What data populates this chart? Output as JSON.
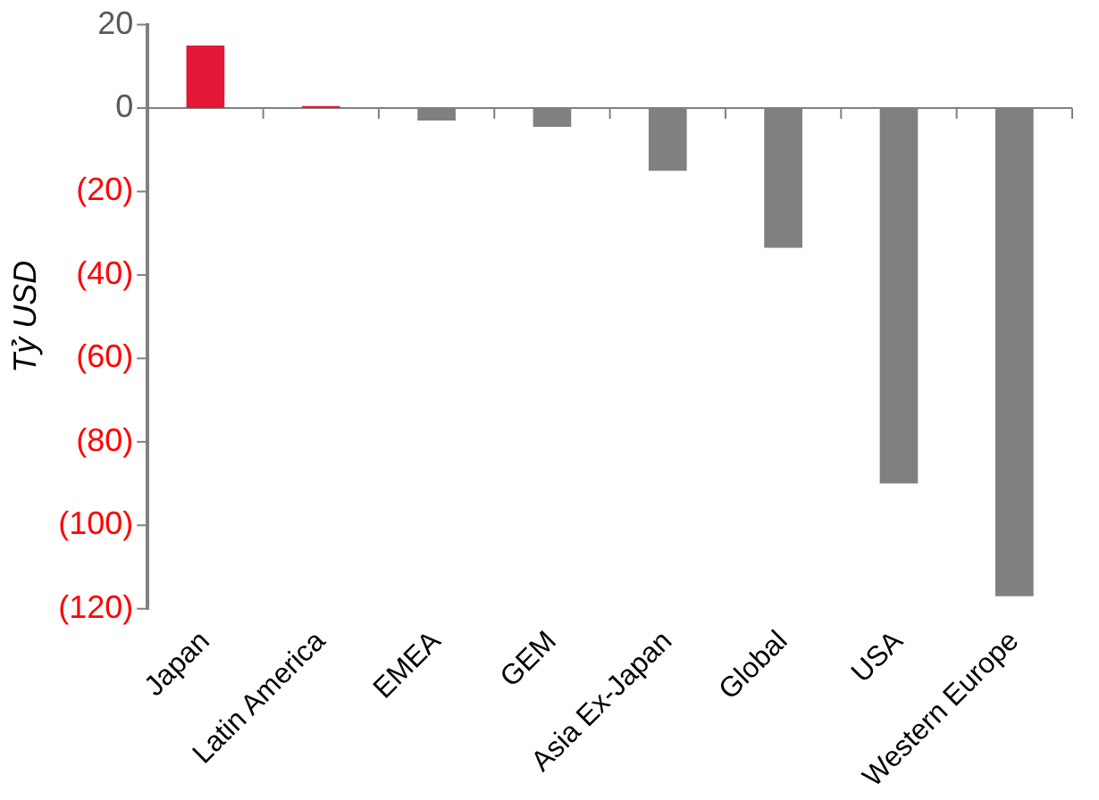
{
  "chart_data": {
    "type": "bar",
    "ylabel": "Tỷ USD",
    "categories": [
      "Japan",
      "Latin America",
      "EMEA",
      "GEM",
      "Asia Ex-Japan",
      "Global",
      "USA",
      "Western Europe"
    ],
    "values": [
      15,
      0.5,
      -3,
      -4.5,
      -15,
      -33.5,
      -90,
      -117
    ],
    "colors": [
      "#e31837",
      "#e31837",
      "#808080",
      "#808080",
      "#808080",
      "#808080",
      "#808080",
      "#808080"
    ],
    "ylim": [
      -120,
      20
    ],
    "yticks": [
      20,
      0,
      {
        "value": -20,
        "label": "(20)"
      },
      {
        "value": -40,
        "label": "(40)"
      },
      {
        "value": -60,
        "label": "(60)"
      },
      {
        "value": -80,
        "label": "(80)"
      },
      {
        "value": -100,
        "label": "(100)"
      },
      {
        "value": -120,
        "label": "(120)"
      }
    ],
    "ref_lines": [
      {
        "axis": "y",
        "value": 0,
        "color": "#808080"
      }
    ],
    "grid": false,
    "legend": false
  }
}
